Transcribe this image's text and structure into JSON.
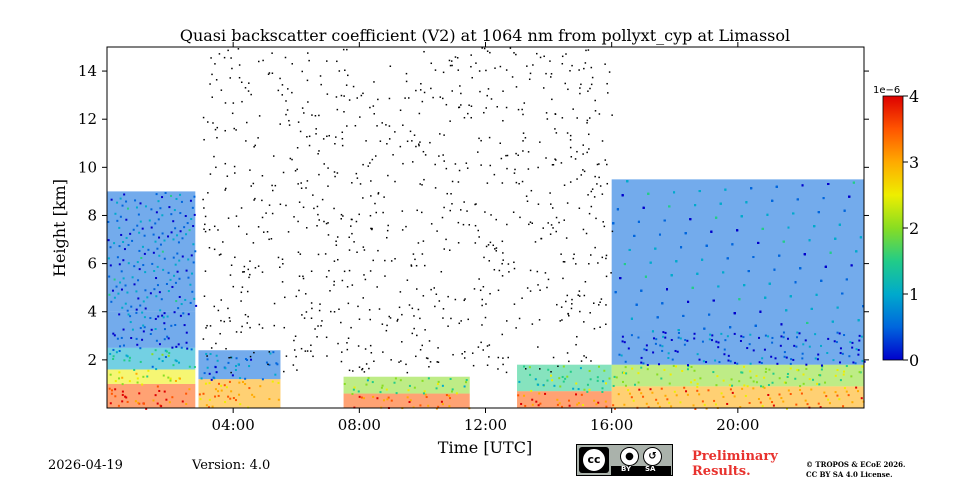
{
  "chart_data": {
    "type": "heatmap",
    "title": "Quasi backscatter coefficient (V2) at 1064 nm from pollyxt_cyp at Limassol",
    "xlabel": "Time [UTC]",
    "ylabel": "Height [km]",
    "xlim": [
      0,
      24
    ],
    "ylim": [
      0,
      15
    ],
    "x_ticks": [
      "04:00",
      "08:00",
      "12:00",
      "16:00",
      "20:00"
    ],
    "x_tick_values": [
      4,
      8,
      12,
      16,
      20
    ],
    "y_ticks": [
      "2",
      "4",
      "6",
      "8",
      "10",
      "12",
      "14"
    ],
    "y_tick_values": [
      2,
      4,
      6,
      8,
      10,
      12,
      14
    ],
    "colorbar": {
      "min": 0,
      "max": 4,
      "ticks": [
        "0",
        "1",
        "2",
        "3",
        "4"
      ],
      "tick_values": [
        0,
        1,
        2,
        3,
        4
      ],
      "scale_label": "1e−6",
      "colors": [
        "#0000cc",
        "#0066dd",
        "#00aacc",
        "#22cc88",
        "#88dd22",
        "#eeee00",
        "#ffaa00",
        "#ff5500",
        "#dd0000"
      ]
    },
    "regions": [
      {
        "t0": 0.0,
        "t1": 2.8,
        "h0": 0.0,
        "h1": 1.0,
        "value": 3.7
      },
      {
        "t0": 0.0,
        "t1": 2.8,
        "h0": 1.0,
        "h1": 1.6,
        "value": 2.4
      },
      {
        "t0": 0.0,
        "t1": 2.8,
        "h0": 1.6,
        "h1": 2.5,
        "value": 1.2
      },
      {
        "t0": 0.0,
        "t1": 2.8,
        "h0": 2.5,
        "h1": 4.0,
        "value": 0.35
      },
      {
        "t0": 0.0,
        "t1": 2.8,
        "h0": 4.0,
        "h1": 9.0,
        "value": 0.6
      },
      {
        "t0": 2.9,
        "t1": 5.5,
        "h0": 0.0,
        "h1": 1.2,
        "value": 3.0
      },
      {
        "t0": 2.9,
        "t1": 5.5,
        "h0": 1.2,
        "h1": 2.4,
        "value": 0.5
      },
      {
        "t0": 7.5,
        "t1": 11.5,
        "h0": 0.0,
        "h1": 0.6,
        "value": 3.4
      },
      {
        "t0": 7.5,
        "t1": 11.5,
        "h0": 0.6,
        "h1": 1.3,
        "value": 1.8
      },
      {
        "t0": 13.0,
        "t1": 16.0,
        "h0": 0.0,
        "h1": 0.7,
        "value": 3.3
      },
      {
        "t0": 13.0,
        "t1": 16.0,
        "h0": 0.7,
        "h1": 1.8,
        "value": 1.7
      },
      {
        "t0": 16.0,
        "t1": 24.0,
        "h0": 0.0,
        "h1": 0.9,
        "value": 3.2
      },
      {
        "t0": 16.0,
        "t1": 24.0,
        "h0": 0.9,
        "h1": 1.8,
        "value": 2.0
      },
      {
        "t0": 16.0,
        "t1": 24.0,
        "h0": 1.8,
        "h1": 3.2,
        "value": 0.3
      },
      {
        "t0": 16.0,
        "t1": 24.0,
        "h0": 3.2,
        "h1": 9.5,
        "value": 0.7
      }
    ]
  },
  "footer": {
    "date": "2026-04-19",
    "version": "Version: 4.0",
    "license_by": "BY",
    "license_sa": "SA",
    "license_cc": "cc",
    "preliminary_line1": "Preliminary",
    "preliminary_line2": "Results.",
    "copyright_line1": "© TROPOS & ECoE 2026.",
    "copyright_line2": "CC BY SA 4.0 License."
  }
}
